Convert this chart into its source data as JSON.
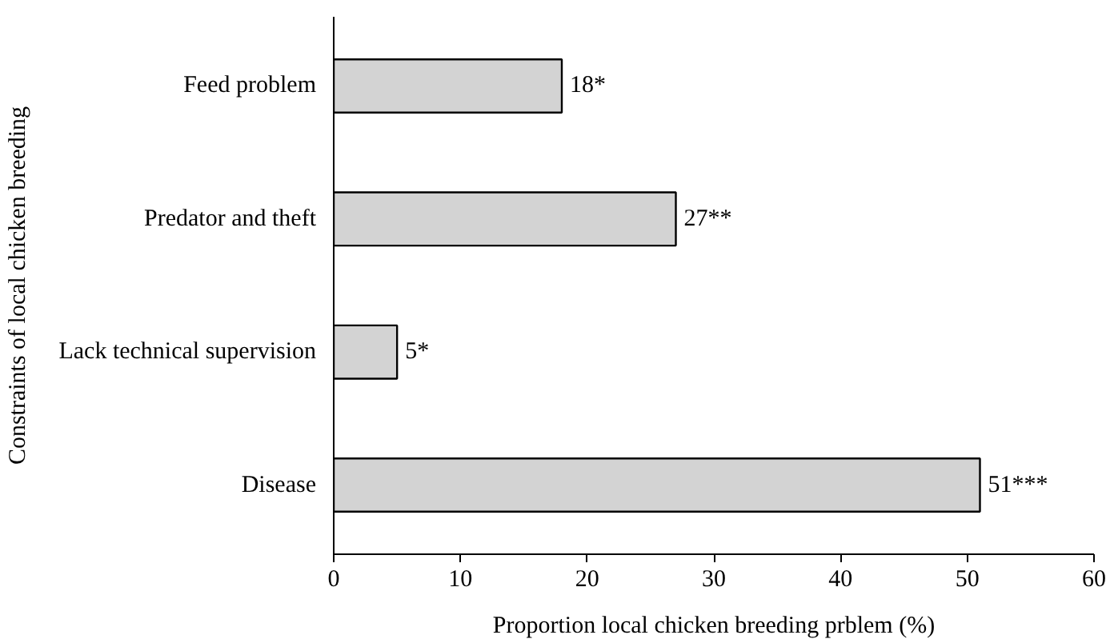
{
  "chart_data": {
    "type": "bar",
    "orientation": "horizontal",
    "xlabel": "Proportion local chicken breeding prblem (%)",
    "ylabel": "Constraints of local chicken breeding",
    "categories": [
      "Feed problem",
      "Predator and theft",
      "Lack technical supervision",
      "Disease"
    ],
    "values": [
      18,
      27,
      5,
      51
    ],
    "value_labels": [
      "18*",
      "27**",
      "5*",
      "51***"
    ],
    "color": "#d3d3d3",
    "xlim": [
      0,
      60
    ],
    "xticks": [
      0,
      10,
      20,
      30,
      40,
      50,
      60
    ],
    "grid": false
  }
}
